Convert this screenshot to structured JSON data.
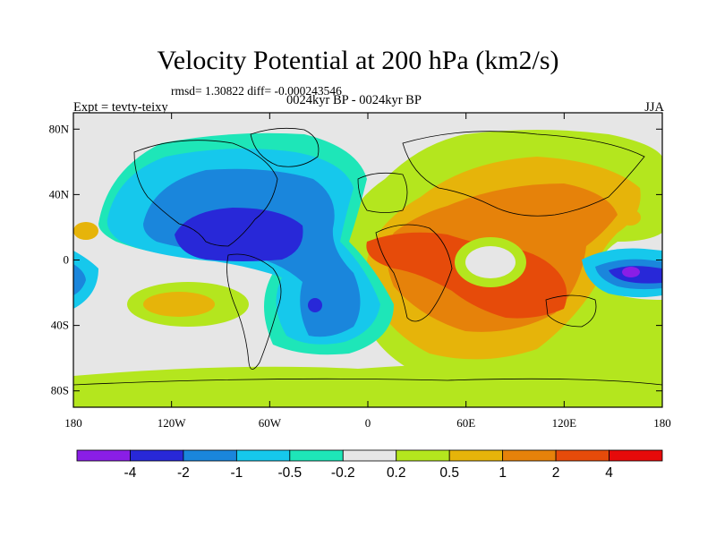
{
  "title": "Velocity Potential at 200 hPa (km2/s)",
  "stats_line": "rmsd= 1.30822 diff= -0.000243546",
  "left_label": "Expt = tevty-teixy",
  "center_label": "0024kyr BP - 0024kyr BP",
  "right_label": "JJA",
  "map": {
    "lat_ticks": [
      "80N",
      "40N",
      "0",
      "40S",
      "80S"
    ],
    "lon_ticks": [
      "180",
      "120W",
      "60W",
      "0",
      "60E",
      "120E",
      "180"
    ],
    "lon_range": [
      -180,
      180
    ],
    "lat_range": [
      -90,
      90
    ]
  },
  "colorbar": {
    "labels": [
      "-4",
      "-2",
      "-1",
      "-0.5",
      "-0.2",
      "0.2",
      "0.5",
      "1",
      "2",
      "4"
    ],
    "colors": [
      "#8a1ee6",
      "#2828d8",
      "#1a86dc",
      "#16c8ec",
      "#1ee6b8",
      "#e6e6e6",
      "#b4e61e",
      "#e6b40a",
      "#e6820a",
      "#e64b0a",
      "#e60a0a"
    ]
  }
}
